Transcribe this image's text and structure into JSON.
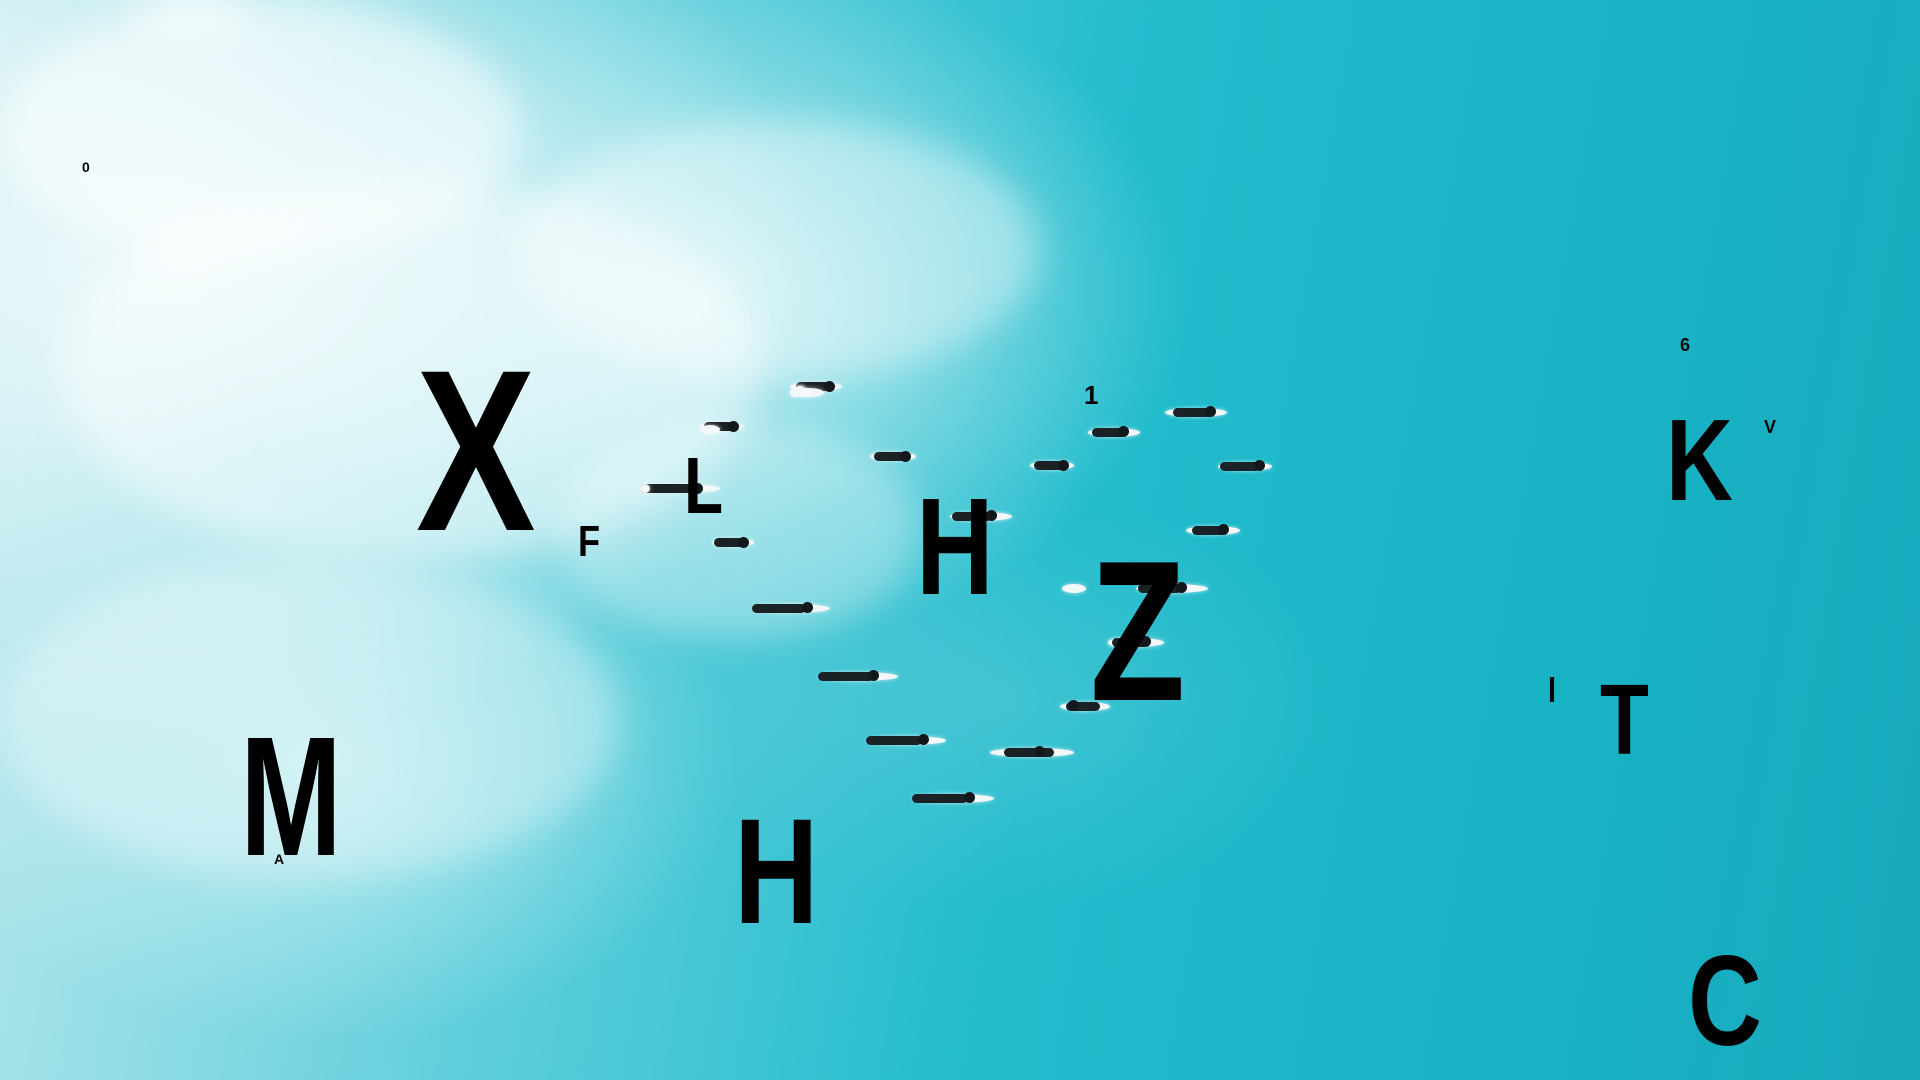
{
  "scene": {
    "description_colors": {
      "water_deep": "#17b3c5",
      "water_light": "#62cfdc",
      "foam": "#ffffff",
      "glyph": "#000000"
    }
  },
  "glyphs": {
    "g_0": "0",
    "g_x": "X",
    "g_f": "F",
    "g_l": "L",
    "g_h1": "H",
    "g_1": "1",
    "g_z": "Z",
    "g_6": "6",
    "g_k": "K",
    "g_v": "V",
    "g_m": "M",
    "g_a": "A",
    "g_h2": "H",
    "g_i": "I",
    "g_t": "T",
    "g_c": "C"
  }
}
